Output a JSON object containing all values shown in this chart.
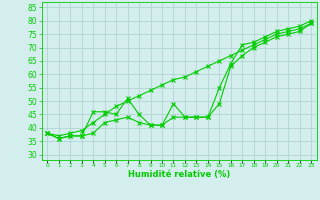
{
  "x": [
    0,
    1,
    2,
    3,
    4,
    5,
    6,
    7,
    8,
    9,
    10,
    11,
    12,
    13,
    14,
    15,
    16,
    17,
    18,
    19,
    20,
    21,
    22,
    23
  ],
  "line1": [
    38,
    36,
    37,
    37,
    46,
    46,
    45,
    51,
    45,
    41,
    41,
    49,
    44,
    44,
    44,
    55,
    64,
    71,
    72,
    74,
    76,
    77,
    78,
    80
  ],
  "line2": [
    38,
    36,
    37,
    37,
    38,
    42,
    43,
    44,
    42,
    41,
    41,
    44,
    44,
    44,
    44,
    49,
    63,
    67,
    70,
    72,
    74,
    75,
    76,
    79
  ],
  "line3": [
    38,
    37,
    38,
    39,
    42,
    45,
    48,
    50,
    52,
    54,
    56,
    58,
    59,
    61,
    63,
    65,
    67,
    69,
    71,
    73,
    75,
    76,
    77,
    79
  ],
  "line_color": "#00cc00",
  "bg_color": "#d4eeed",
  "grid_color": "#aacfcf",
  "xlabel": "Humidité relative (%)",
  "ylabel_ticks": [
    30,
    35,
    40,
    45,
    50,
    55,
    60,
    65,
    70,
    75,
    80,
    85
  ],
  "xlim": [
    -0.5,
    23.5
  ],
  "ylim": [
    28,
    87
  ],
  "marker": "x",
  "linewidth": 0.8,
  "markersize": 2.5,
  "markeredgewidth": 0.8
}
